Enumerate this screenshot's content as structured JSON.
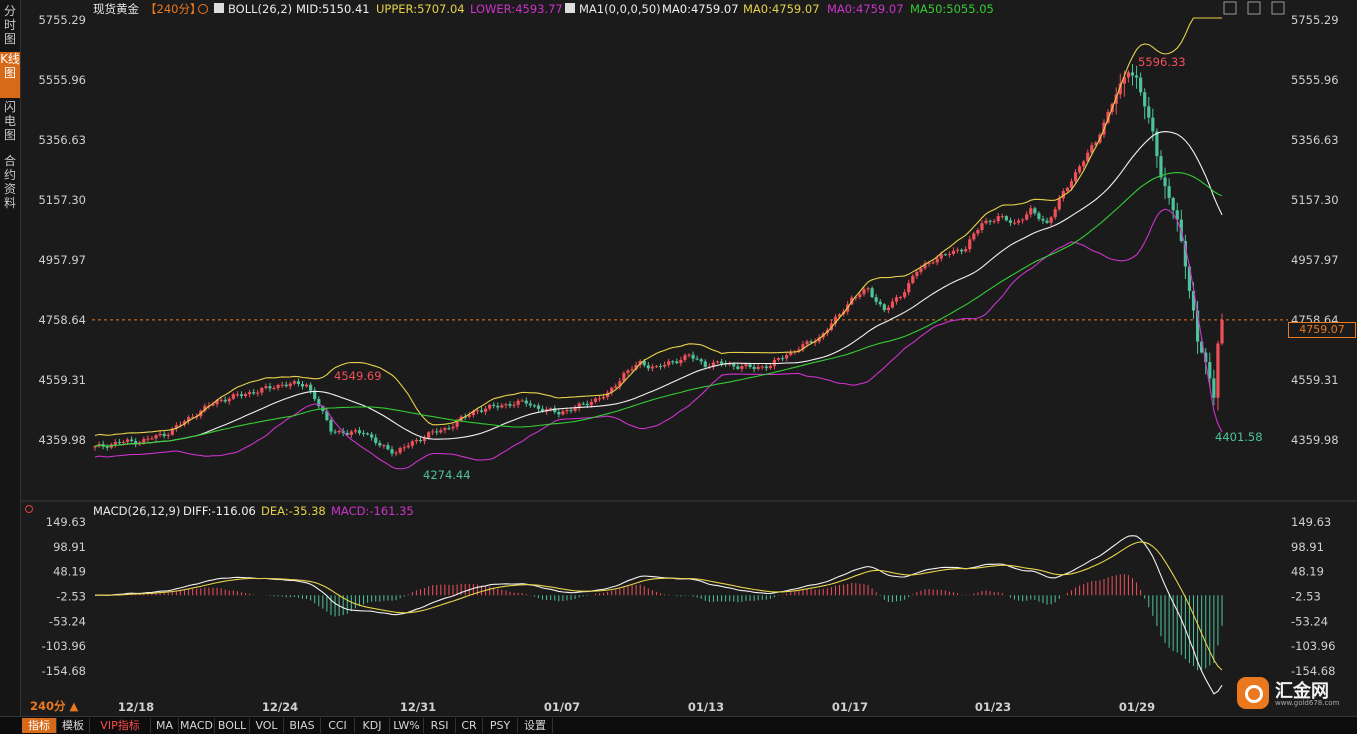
{
  "sidebar": {
    "tabs": [
      {
        "label": "分时图",
        "active": false
      },
      {
        "label": "K线图",
        "active": true
      },
      {
        "label": "闪电图",
        "active": false
      },
      {
        "label": "合约资料",
        "active": false
      }
    ]
  },
  "header": {
    "symbol": "现货黄金",
    "period": "【240分】",
    "boll_label": "BOLL(26,2)",
    "mid": "MID:5150.41",
    "upper": "UPPER:5707.04",
    "lower": "LOWER:4593.77",
    "ma_label": "MA1(0,0,0,50)",
    "ma0_a": "MA0:4759.07",
    "ma0_b": "MA0:4759.07",
    "ma0_c": "MA0:4759.07",
    "ma50": "MA50:5055.05"
  },
  "macd_header": {
    "label": "MACD(26,12,9)",
    "diff": "DIFF:-116.06",
    "dea": "DEA:-35.38",
    "macd": "MACD:-161.35"
  },
  "price_axis_labels": [
    "5755.29",
    "5555.96",
    "5356.63",
    "5157.30",
    "4957.97",
    "4758.64",
    "4559.31",
    "4359.98"
  ],
  "macd_axis_labels": [
    "149.63",
    "98.91",
    "48.19",
    "-2.53",
    "-53.24",
    "-103.96",
    "-154.68"
  ],
  "date_labels": [
    "12/18",
    "12/24",
    "12/31",
    "01/07",
    "01/13",
    "01/17",
    "01/23",
    "01/29"
  ],
  "current_price": "4759.07",
  "period_label": "240分 ▲",
  "annotations": {
    "high_1": "4549.69",
    "low_1": "4274.44",
    "high_2": "5596.33",
    "low_2": "4401.58"
  },
  "bottom_bar": [
    {
      "label": "指标",
      "active": true
    },
    {
      "label": "模板",
      "active": false
    },
    {
      "label": "VIP指标",
      "vip": true
    },
    {
      "label": "MA"
    },
    {
      "label": "MACD"
    },
    {
      "label": "BOLL"
    },
    {
      "label": "VOL"
    },
    {
      "label": "BIAS"
    },
    {
      "label": "CCI"
    },
    {
      "label": "KDJ"
    },
    {
      "label": "LW%"
    },
    {
      "label": "RSI"
    },
    {
      "label": "CR"
    },
    {
      "label": "PSY"
    },
    {
      "label": "设置"
    }
  ],
  "logo": {
    "name": "汇金网",
    "url": "www.gold678.com"
  },
  "colors": {
    "up": "#f0505a",
    "down": "#4ec39a",
    "upper": "#e6d24a",
    "mid": "#f2f2f2",
    "lower": "#cc33cc",
    "ma50": "#33cc33",
    "accent": "#e9781f",
    "diff": "#f2f2f2",
    "dea": "#e6d24a"
  },
  "chart_data": [
    {
      "type": "candlestick",
      "title": "现货黄金 【240分】",
      "x_dates": [
        "12/18",
        "12/24",
        "12/31",
        "01/07",
        "01/13",
        "01/17",
        "01/23",
        "01/29"
      ],
      "ylim": [
        4260,
        5780
      ],
      "anchors_index_close": [
        [
          0,
          4335
        ],
        [
          6,
          4352
        ],
        [
          12,
          4358
        ],
        [
          18,
          4385
        ],
        [
          24,
          4440
        ],
        [
          30,
          4490
        ],
        [
          36,
          4510
        ],
        [
          42,
          4530
        ],
        [
          46,
          4545
        ],
        [
          52,
          4545
        ],
        [
          54,
          4500
        ],
        [
          58,
          4395
        ],
        [
          62,
          4380
        ],
        [
          66,
          4390
        ],
        [
          70,
          4340
        ],
        [
          74,
          4320
        ],
        [
          78,
          4350
        ],
        [
          82,
          4380
        ],
        [
          86,
          4395
        ],
        [
          90,
          4430
        ],
        [
          94,
          4460
        ],
        [
          98,
          4470
        ],
        [
          102,
          4480
        ],
        [
          106,
          4485
        ],
        [
          110,
          4460
        ],
        [
          114,
          4452
        ],
        [
          118,
          4465
        ],
        [
          122,
          4490
        ],
        [
          126,
          4510
        ],
        [
          130,
          4580
        ],
        [
          134,
          4615
        ],
        [
          138,
          4600
        ],
        [
          142,
          4620
        ],
        [
          146,
          4640
        ],
        [
          150,
          4610
        ],
        [
          154,
          4615
        ],
        [
          158,
          4605
        ],
        [
          162,
          4600
        ],
        [
          166,
          4608
        ],
        [
          170,
          4645
        ],
        [
          174,
          4672
        ],
        [
          178,
          4700
        ],
        [
          182,
          4760
        ],
        [
          186,
          4830
        ],
        [
          190,
          4860
        ],
        [
          194,
          4790
        ],
        [
          198,
          4840
        ],
        [
          202,
          4920
        ],
        [
          206,
          4960
        ],
        [
          210,
          4980
        ],
        [
          214,
          5000
        ],
        [
          218,
          5080
        ],
        [
          222,
          5100
        ],
        [
          226,
          5080
        ],
        [
          230,
          5120
        ],
        [
          234,
          5080
        ],
        [
          238,
          5180
        ],
        [
          242,
          5270
        ],
        [
          246,
          5350
        ],
        [
          250,
          5480
        ],
        [
          254,
          5590
        ],
        [
          256,
          5560
        ],
        [
          258,
          5470
        ],
        [
          260,
          5380
        ],
        [
          262,
          5240
        ],
        [
          264,
          5160
        ],
        [
          266,
          5090
        ],
        [
          268,
          4940
        ],
        [
          270,
          4790
        ],
        [
          271,
          4680
        ],
        [
          273,
          4620
        ],
        [
          275,
          4500
        ],
        [
          276,
          4690
        ],
        [
          277,
          4759
        ]
      ],
      "overlays": [
        "BOLL(26,2) UPPER",
        "BOLL(26,2) MID",
        "BOLL(26,2) LOWER",
        "MA50"
      ]
    },
    {
      "type": "bar",
      "title": "MACD(26,12,9)",
      "ylim": [
        -200,
        160
      ],
      "series": [
        "DIFF",
        "DEA",
        "MACD"
      ]
    }
  ]
}
